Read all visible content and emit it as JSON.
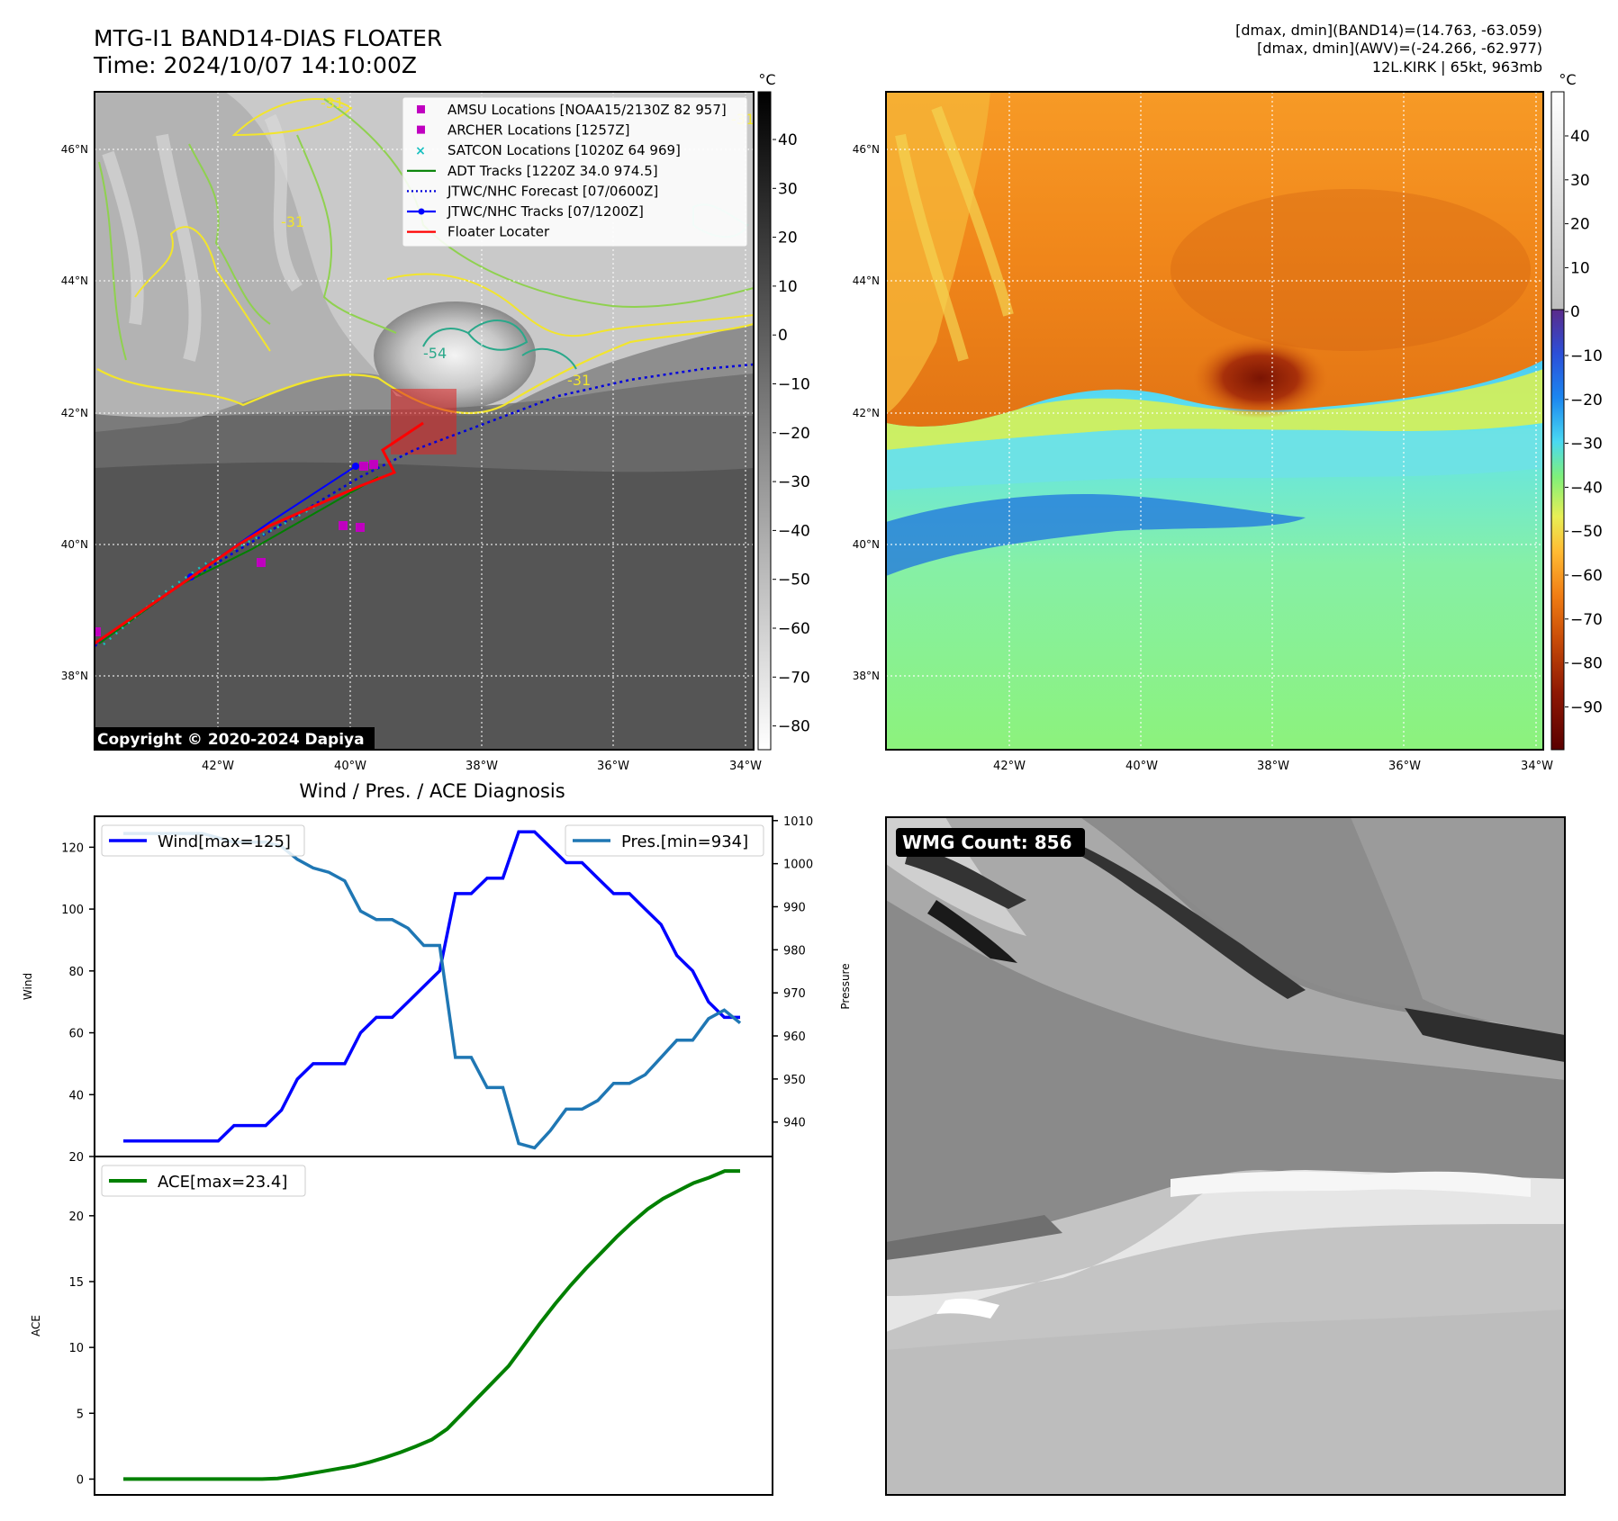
{
  "header": {
    "title": "MTG-I1 BAND14-DIAS FLOATER",
    "time": "Time: 2024/10/07 14:10:00Z",
    "info_lines": [
      "[dmax, dmin](BAND14)=(14.763, -63.059)",
      "[dmax, dmin](AWV)=(-24.266, -62.977)",
      "12L.KIRK | 65kt, 963mb"
    ]
  },
  "maps": {
    "lon_ticks": [
      "42°W",
      "40°W",
      "38°W",
      "36°W",
      "34°W"
    ],
    "lat_ticks": [
      "46°N",
      "44°N",
      "42°N",
      "40°N",
      "38°N"
    ],
    "copyright": "Copyright © 2020-2024 Dapiya",
    "contour_labels": [
      "-31",
      "-31",
      "-54",
      "-31",
      "-31"
    ],
    "legend": [
      {
        "label": "AMSU Locations [NOAA15/2130Z 82 957]",
        "marker": "square",
        "color": "#c000c0"
      },
      {
        "label": "ARCHER Locations [1257Z]",
        "marker": "square",
        "color": "#c000c0"
      },
      {
        "label": "SATCON Locations [1020Z 64 969]",
        "marker": "x",
        "color": "#19c0c0"
      },
      {
        "label": "ADT Tracks [1220Z 34.0 974.5]",
        "marker": "line",
        "color": "#008000"
      },
      {
        "label": "JTWC/NHC Forecast [07/0600Z]",
        "marker": "dotted",
        "color": "#0000dd"
      },
      {
        "label": "JTWC/NHC Tracks [07/1200Z]",
        "marker": "line-dot",
        "color": "#0000ff"
      },
      {
        "label": "Floater Locater",
        "marker": "line",
        "color": "#ff0000"
      }
    ],
    "colorbar_left": {
      "unit": "°C",
      "ticks": [
        "40",
        "30",
        "20",
        "10",
        "0",
        "−10",
        "−20",
        "−30",
        "−40",
        "−50",
        "−60",
        "−70",
        "−80"
      ]
    },
    "colorbar_right": {
      "unit": "°C",
      "ticks": [
        "40",
        "30",
        "20",
        "10",
        "0",
        "−10",
        "−20",
        "−30",
        "−40",
        "−50",
        "−60",
        "−70",
        "−80",
        "−90"
      ]
    }
  },
  "wmg": {
    "label": "WMG Count: 856"
  },
  "chart_data": [
    {
      "type": "line",
      "title": "Wind / Pres. / ACE Diagnosis",
      "ylabel": "Wind",
      "y2label": "Pressure",
      "ylim": [
        20,
        130
      ],
      "y2lim": [
        932,
        1011
      ],
      "yticks": [
        20,
        40,
        60,
        80,
        100,
        120
      ],
      "y2ticks": [
        940,
        950,
        960,
        970,
        980,
        990,
        1000,
        1010
      ],
      "series": [
        {
          "name": "Wind[max=125]",
          "color": "#0000ff",
          "axis": "left",
          "values": [
            25,
            25,
            25,
            25,
            25,
            25,
            25,
            30,
            30,
            30,
            35,
            45,
            50,
            50,
            50,
            60,
            65,
            65,
            70,
            75,
            80,
            105,
            105,
            110,
            110,
            125,
            125,
            120,
            115,
            115,
            110,
            105,
            105,
            100,
            95,
            85,
            80,
            70,
            65,
            65
          ]
        },
        {
          "name": "Pres.[min=934]",
          "color": "#1f77b4",
          "axis": "right",
          "values": [
            1007,
            1007,
            1007,
            1007,
            1007,
            1007,
            1006,
            1005,
            1005,
            1005,
            1004,
            1001,
            999,
            998,
            996,
            989,
            987,
            987,
            985,
            981,
            981,
            955,
            955,
            948,
            948,
            935,
            934,
            938,
            943,
            943,
            945,
            949,
            949,
            951,
            955,
            959,
            959,
            964,
            966,
            963
          ]
        }
      ]
    },
    {
      "type": "line",
      "ylabel": "ACE",
      "ylim": [
        -1.2,
        24.5
      ],
      "yticks": [
        0,
        5,
        10,
        15,
        20
      ],
      "series": [
        {
          "name": "ACE[max=23.4]",
          "color": "#008000",
          "values": [
            0,
            0,
            0,
            0,
            0,
            0,
            0,
            0,
            0,
            0,
            0.05,
            0.2,
            0.4,
            0.6,
            0.8,
            1.0,
            1.3,
            1.65,
            2.05,
            2.5,
            3.0,
            3.8,
            5.0,
            6.2,
            7.4,
            8.6,
            10.2,
            11.8,
            13.3,
            14.7,
            16.0,
            17.2,
            18.4,
            19.5,
            20.5,
            21.3,
            21.9,
            22.5,
            22.9,
            23.4,
            23.4
          ]
        }
      ]
    }
  ]
}
